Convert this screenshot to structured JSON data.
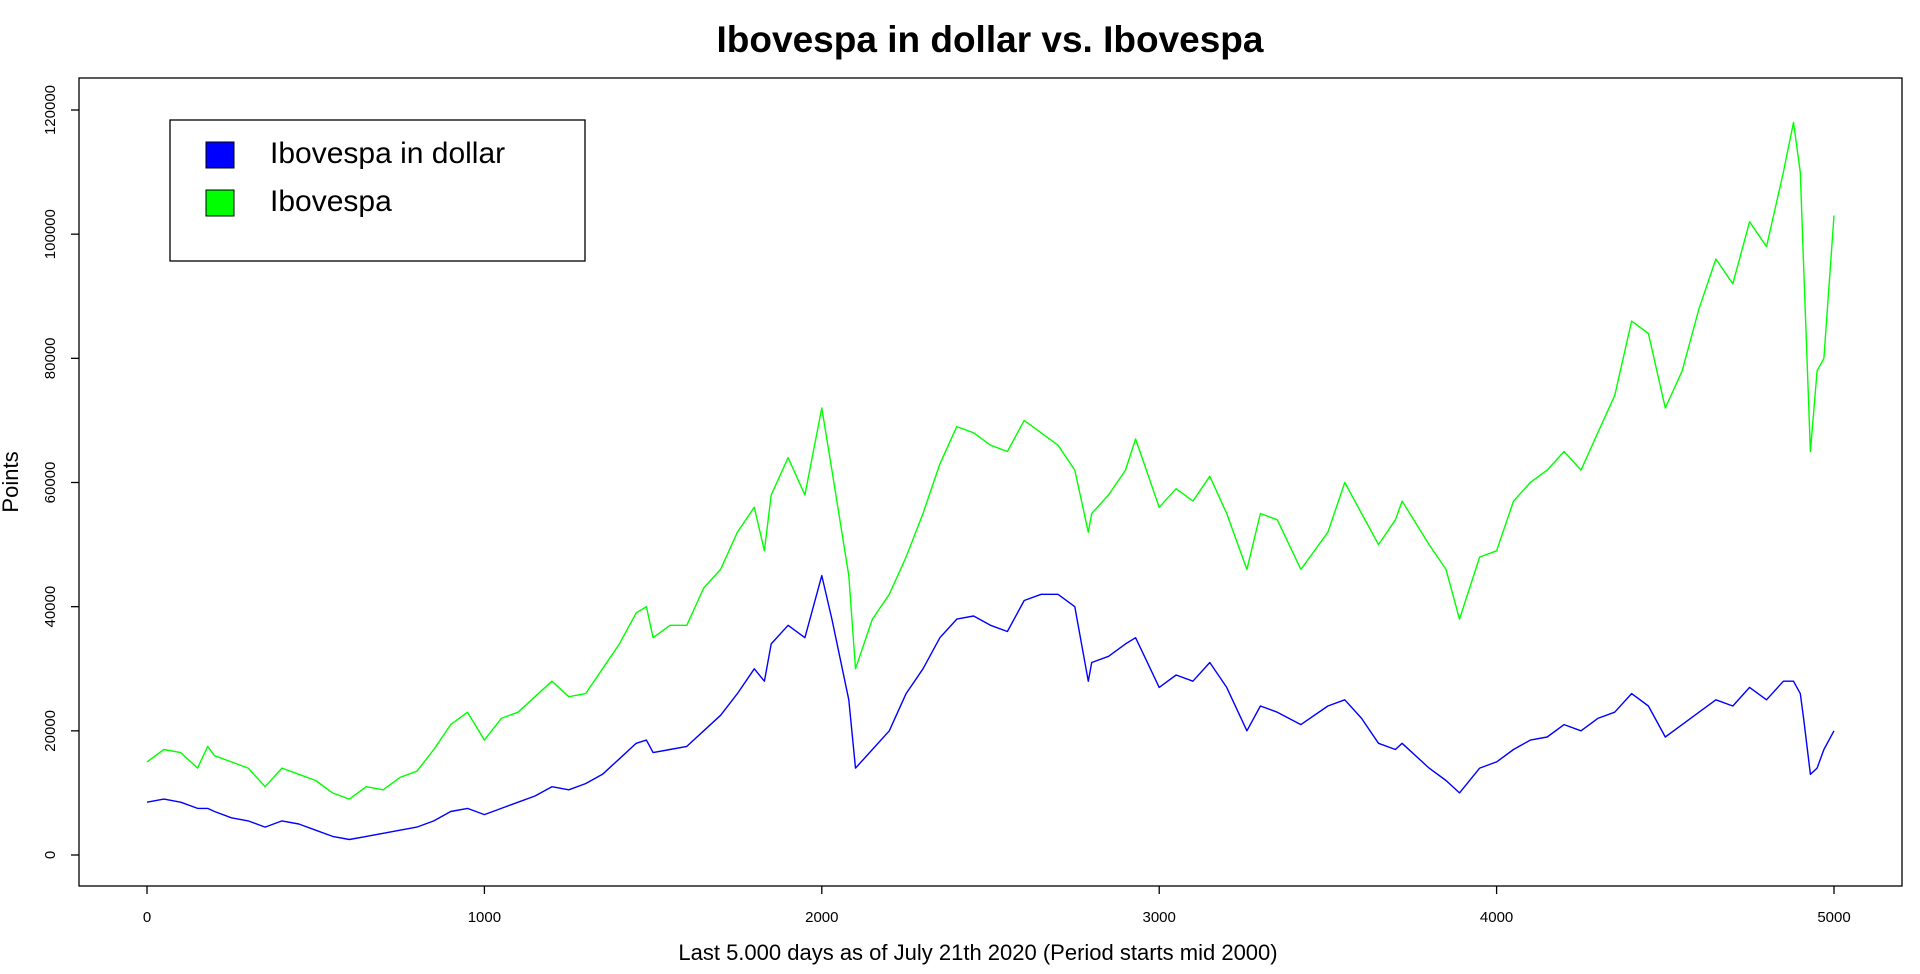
{
  "chart_data": {
    "type": "line",
    "title": "Ibovespa in dollar vs. Ibovespa",
    "x_label": "Last 5.000 days as of July 21th 2020 (Period starts mid 2000)",
    "y_label": "Points",
    "legend": "top-left",
    "xlim": [
      0,
      5000
    ],
    "ylim": [
      0,
      120000
    ],
    "xticks": [
      0,
      1000,
      2000,
      3000,
      4000,
      5000
    ],
    "yticks": [
      0,
      20000,
      40000,
      60000,
      80000,
      100000,
      120000
    ],
    "x": [
      0,
      50,
      100,
      150,
      180,
      200,
      250,
      300,
      350,
      400,
      450,
      500,
      550,
      600,
      650,
      700,
      750,
      800,
      850,
      900,
      950,
      1000,
      1050,
      1100,
      1150,
      1200,
      1250,
      1300,
      1350,
      1400,
      1450,
      1480,
      1500,
      1550,
      1600,
      1650,
      1700,
      1750,
      1800,
      1830,
      1850,
      1900,
      1950,
      2000,
      2030,
      2080,
      2100,
      2150,
      2200,
      2250,
      2300,
      2350,
      2400,
      2450,
      2500,
      2550,
      2600,
      2650,
      2700,
      2750,
      2790,
      2800,
      2850,
      2900,
      2930,
      3000,
      3050,
      3100,
      3150,
      3200,
      3260,
      3300,
      3350,
      3420,
      3500,
      3550,
      3600,
      3650,
      3700,
      3720,
      3800,
      3850,
      3890,
      3950,
      4000,
      4050,
      4100,
      4150,
      4200,
      4250,
      4300,
      4350,
      4400,
      4450,
      4500,
      4550,
      4600,
      4650,
      4700,
      4750,
      4800,
      4850,
      4880,
      4900,
      4910,
      4930,
      4950,
      4970,
      5000
    ],
    "series": [
      {
        "name": "Ibovespa in dollar",
        "color": "#0000ff",
        "values": [
          8500,
          9000,
          8500,
          7500,
          7500,
          7000,
          6000,
          5500,
          4500,
          5500,
          5000,
          4000,
          3000,
          2500,
          3000,
          3500,
          4000,
          4500,
          5500,
          7000,
          7500,
          6500,
          7500,
          8500,
          9500,
          11000,
          10500,
          11500,
          13000,
          15500,
          18000,
          18500,
          16500,
          17000,
          17500,
          20000,
          22500,
          26000,
          30000,
          28000,
          34000,
          37000,
          35000,
          45000,
          38000,
          25000,
          14000,
          17000,
          20000,
          26000,
          30000,
          35000,
          38000,
          38500,
          37000,
          36000,
          41000,
          42000,
          42000,
          40000,
          28000,
          31000,
          32000,
          34000,
          35000,
          27000,
          29000,
          28000,
          31000,
          27000,
          20000,
          24000,
          23000,
          21000,
          24000,
          25000,
          22000,
          18000,
          17000,
          18000,
          14000,
          12000,
          10000,
          14000,
          15000,
          17000,
          18500,
          19000,
          21000,
          20000,
          22000,
          23000,
          26000,
          24000,
          19000,
          21000,
          23000,
          25000,
          24000,
          27000,
          25000,
          28000,
          28000,
          26000,
          22000,
          13000,
          14000,
          17000,
          20000
        ]
      },
      {
        "name": "Ibovespa",
        "color": "#00ff00",
        "values": [
          15000,
          17000,
          16500,
          14000,
          17500,
          16000,
          15000,
          14000,
          11000,
          14000,
          13000,
          12000,
          10000,
          9000,
          11000,
          10500,
          12500,
          13500,
          17000,
          21000,
          23000,
          18500,
          22000,
          23000,
          25500,
          28000,
          25500,
          26000,
          30000,
          34000,
          39000,
          40000,
          35000,
          37000,
          37000,
          43000,
          46000,
          52000,
          56000,
          49000,
          58000,
          64000,
          58000,
          72000,
          62000,
          45000,
          30000,
          38000,
          42000,
          48000,
          55000,
          63000,
          69000,
          68000,
          66000,
          65000,
          70000,
          68000,
          66000,
          62000,
          52000,
          55000,
          58000,
          62000,
          67000,
          56000,
          59000,
          57000,
          61000,
          55000,
          46000,
          55000,
          54000,
          46000,
          52000,
          60000,
          55000,
          50000,
          54000,
          57000,
          50000,
          46000,
          38000,
          48000,
          49000,
          57000,
          60000,
          62000,
          65000,
          62000,
          68000,
          74000,
          86000,
          84000,
          72000,
          78000,
          88000,
          96000,
          92000,
          102000,
          98000,
          110000,
          118000,
          110000,
          95000,
          65000,
          78000,
          80000,
          103000
        ]
      }
    ]
  }
}
